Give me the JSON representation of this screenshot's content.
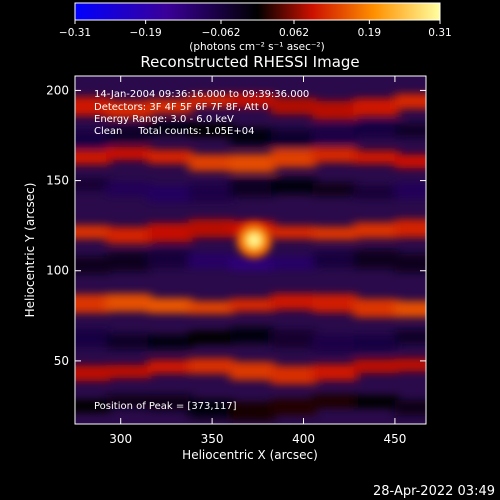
{
  "chart_data": {
    "type": "heatmap",
    "title": "Reconstructed RHESSI Image",
    "xlabel": "Heliocentric X (arcsec)",
    "ylabel": "Heliocentric Y (arcsec)",
    "xlim": [
      275,
      467
    ],
    "ylim": [
      15,
      208
    ],
    "x_ticks": [
      300,
      350,
      400,
      450
    ],
    "y_ticks": [
      50,
      100,
      150,
      200
    ],
    "colorbar": {
      "min": -0.31,
      "max": 0.31,
      "ticks": [
        -0.31,
        -0.19,
        -0.062,
        0.062,
        0.19,
        0.31
      ],
      "tick_labels": [
        "−0.31",
        "−0.19",
        "−0.062",
        "0.062",
        "0.19",
        "0.31"
      ],
      "unit_label": "(photons cm⁻² s⁻¹ asec⁻²)",
      "colors": [
        "#0000ff",
        "#3a0099",
        "#000000",
        "#cc1000",
        "#ff9000",
        "#ffffa0"
      ]
    },
    "peak": {
      "x": 373,
      "y": 117,
      "value": 0.31
    },
    "bands": [
      {
        "y": 192,
        "value": 0.09
      },
      {
        "y": 176,
        "value": -0.12
      },
      {
        "y": 162,
        "value": 0.12
      },
      {
        "y": 145,
        "value": -0.14
      },
      {
        "y": 122,
        "value": 0.1
      },
      {
        "y": 105,
        "value": -0.16
      },
      {
        "y": 81,
        "value": 0.13
      },
      {
        "y": 62,
        "value": -0.12
      },
      {
        "y": 45,
        "value": 0.1
      },
      {
        "y": 25,
        "value": -0.08
      }
    ],
    "annotations": [
      "14-Jan-2004 09:36:16.000 to 09:39:36.000",
      "Detectors: 3F 4F 5F 6F 7F 8F, Att 0",
      "Energy Range: 3.0 - 6.0 keV",
      "Clean     Total counts: 1.05E+04",
      "Position of Peak = [373,117]"
    ]
  },
  "footer": {
    "timestamp": "28-Apr-2022 03:49"
  }
}
